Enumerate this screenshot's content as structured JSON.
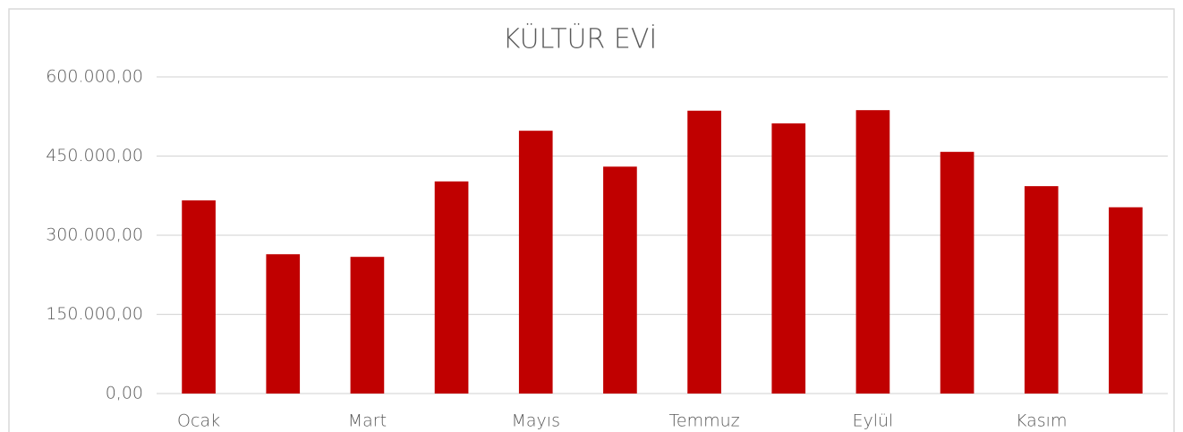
{
  "chart_data": {
    "type": "bar",
    "title": "KÜLTÜR EVİ",
    "categories": [
      "Ocak",
      null,
      "Mart",
      null,
      "Mayıs",
      null,
      "Temmuz",
      null,
      "Eylül",
      null,
      "Kasım",
      null
    ],
    "values": [
      366000,
      264000,
      259000,
      402000,
      498000,
      430000,
      536000,
      512000,
      537000,
      458000,
      393000,
      353000
    ],
    "color": "#c00000",
    "ylim": [
      0,
      600000
    ],
    "yticks": [
      {
        "value": 0,
        "label": "0,00"
      },
      {
        "value": 150000,
        "label": "150.000,00"
      },
      {
        "value": 300000,
        "label": "300.000,00"
      },
      {
        "value": 450000,
        "label": "450.000,00"
      },
      {
        "value": 600000,
        "label": "600.000,00"
      }
    ],
    "grid": true
  }
}
